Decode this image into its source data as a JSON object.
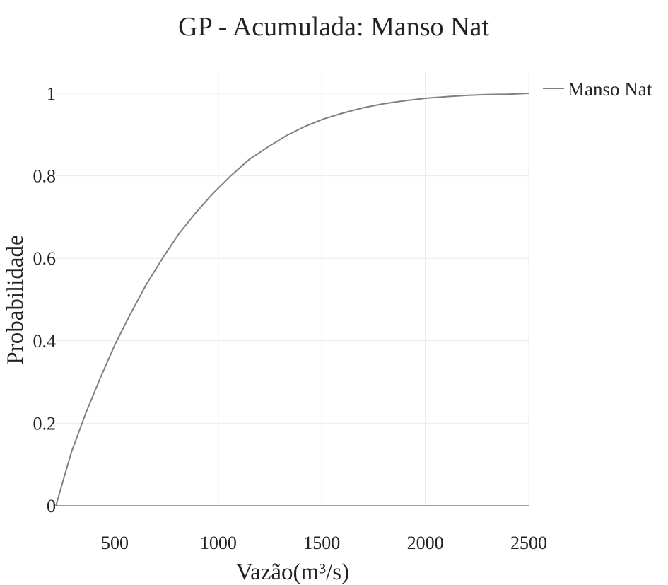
{
  "chart_data": {
    "type": "line",
    "title": "GP - Acumulada: Manso Nat",
    "xlabel": "Vazão(m³/s)",
    "ylabel": "Probabilidade",
    "xlim": [
      215,
      2500
    ],
    "ylim": [
      0,
      1
    ],
    "x_ticks": [
      500,
      1000,
      1500,
      2000,
      2500
    ],
    "y_ticks": [
      0,
      0.2,
      0.4,
      0.6,
      0.8,
      1
    ],
    "y_tick_labels": [
      "0",
      "0.2",
      "0.4",
      "0.6",
      "0.8",
      "1"
    ],
    "grid": true,
    "legend_position": "top-right",
    "series": [
      {
        "name": "Manso Nat",
        "color": "#808080",
        "x": [
          215,
          290,
          360,
          430,
          500,
          570,
          650,
          730,
          810,
          890,
          970,
          1060,
          1150,
          1240,
          1330,
          1420,
          1510,
          1600,
          1700,
          1800,
          1900,
          2000,
          2100,
          2200,
          2300,
          2400,
          2500
        ],
        "y": [
          0,
          0.13,
          0.225,
          0.31,
          0.39,
          0.46,
          0.535,
          0.6,
          0.66,
          0.71,
          0.755,
          0.8,
          0.84,
          0.87,
          0.898,
          0.92,
          0.938,
          0.952,
          0.965,
          0.975,
          0.982,
          0.988,
          0.992,
          0.995,
          0.997,
          0.998,
          1.0
        ]
      }
    ],
    "baseline": {
      "y": 0,
      "color": "#808080"
    }
  }
}
